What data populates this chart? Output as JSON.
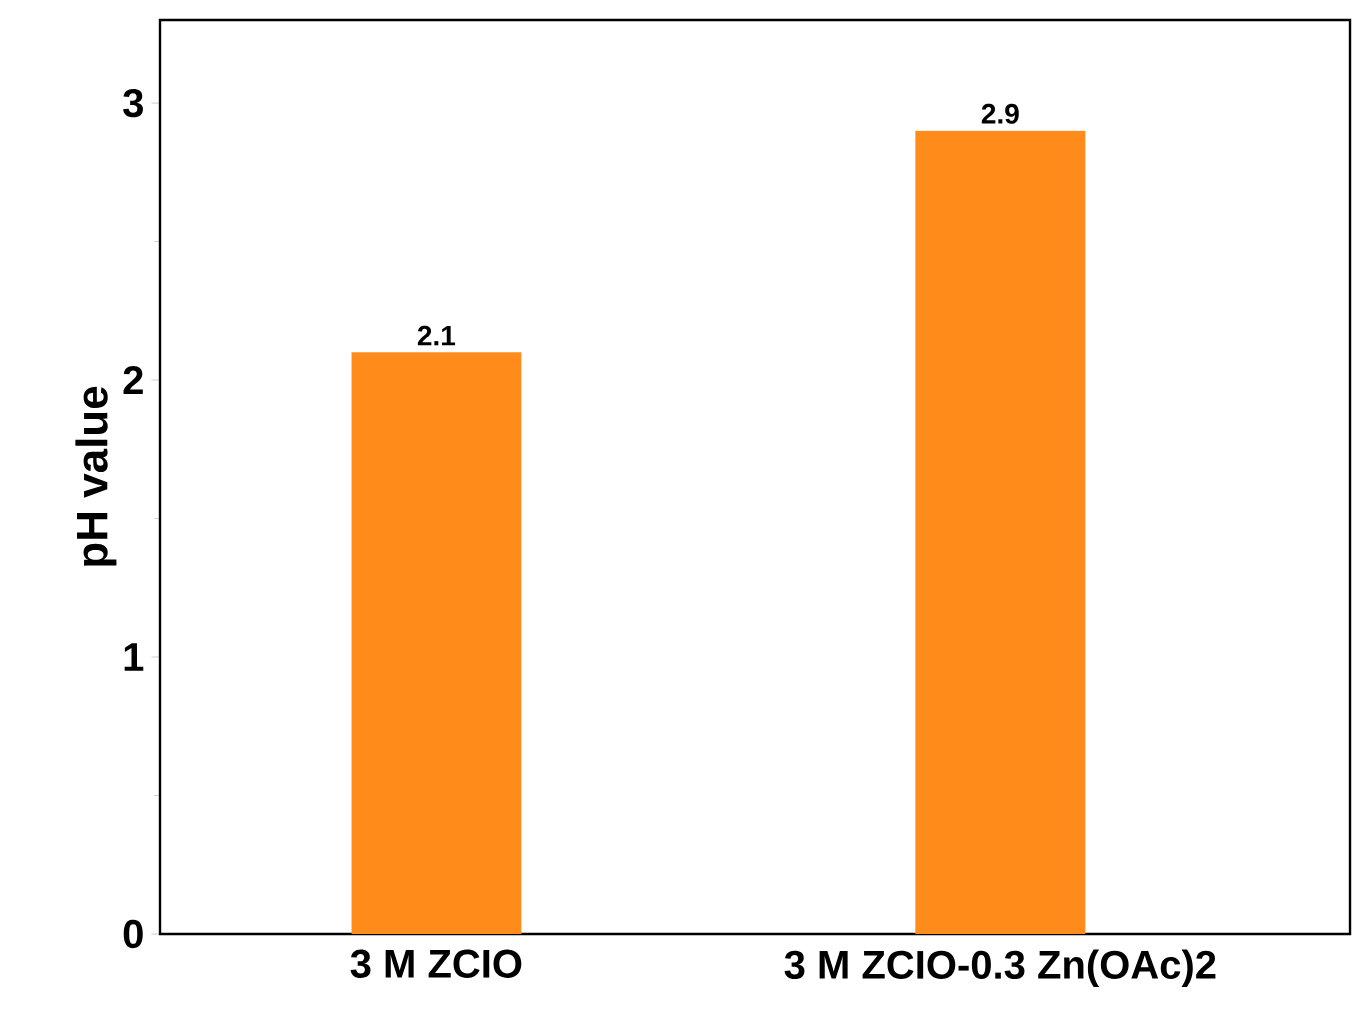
{
  "chart_data": {
    "type": "bar",
    "ylabel": "pH value",
    "categories": [
      "3 M ZCIO",
      "3 M ZCIO-0.3 Zn(OAc)2"
    ],
    "values": [
      2.1,
      2.9
    ],
    "color": "#ff8c1a",
    "ylim": [
      0,
      3.3
    ],
    "yticks": [
      0,
      1,
      2,
      3
    ],
    "data_labels": true
  }
}
